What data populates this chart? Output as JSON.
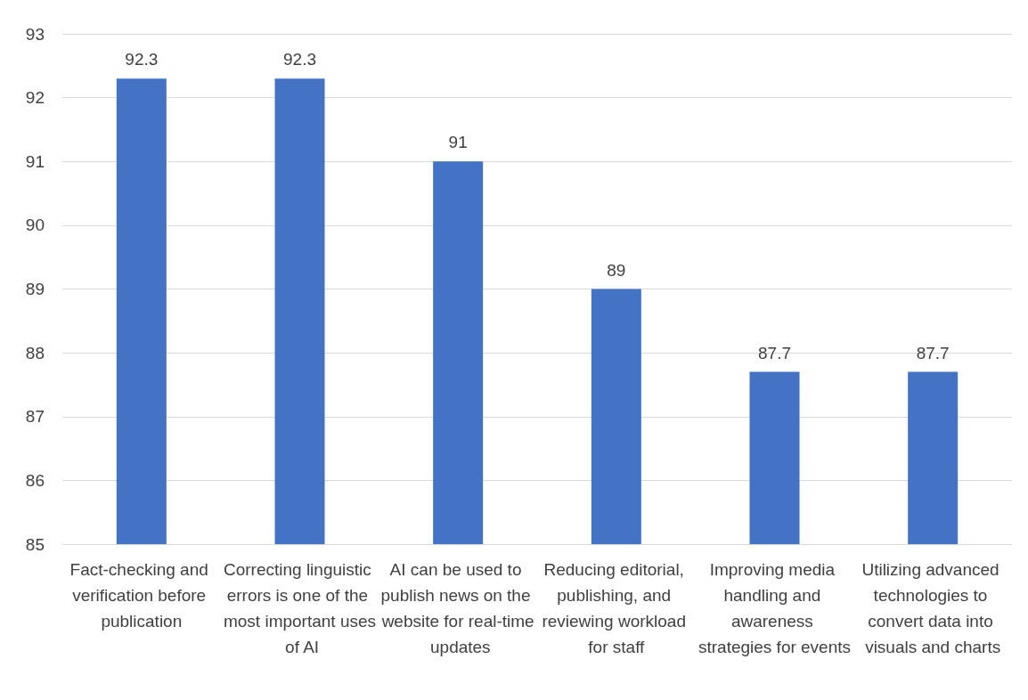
{
  "chart_data": {
    "type": "bar",
    "categories": [
      "Fact-checking and verification before publication",
      "Correcting linguistic errors is one of the most important uses of AI",
      "AI can be used to publish news on the website for real-time updates",
      "Reducing editorial, publishing, and reviewing workload for staff",
      "Improving media handling and awareness strategies for events",
      "Utilizing advanced technologies to convert data into visuals and charts"
    ],
    "values": [
      92.3,
      92.3,
      91,
      89,
      87.7,
      87.7
    ],
    "color": "#4472c4",
    "ylim": [
      85,
      93
    ],
    "yticks": [
      85,
      86,
      87,
      88,
      89,
      90,
      91,
      92,
      93
    ],
    "grid": "y",
    "data_labels": true
  }
}
